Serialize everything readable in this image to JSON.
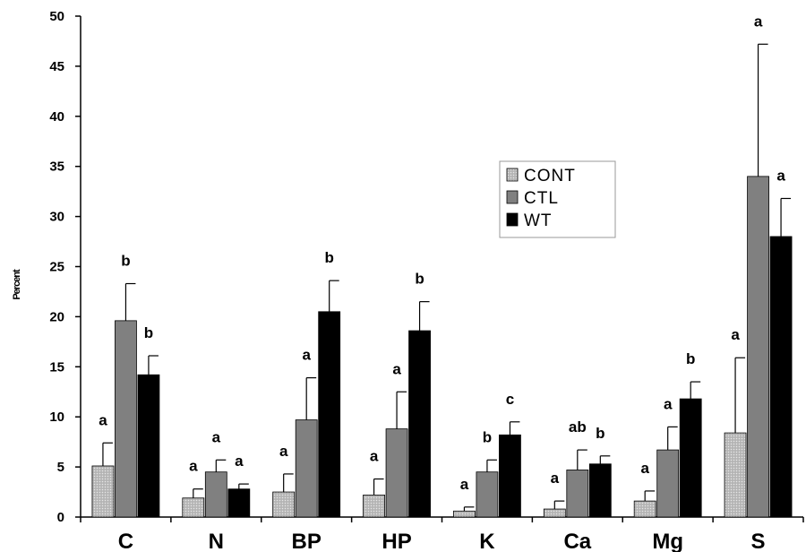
{
  "chart_data": {
    "type": "bar",
    "ylabel": "Percent",
    "xlabel": "",
    "ylim": [
      0,
      50
    ],
    "yticks": [
      0,
      5,
      10,
      15,
      20,
      25,
      30,
      35,
      40,
      45,
      50
    ],
    "grid": false,
    "legend_position": "center-right",
    "categories": [
      "C",
      "N",
      "BP",
      "HP",
      "K",
      "Ca",
      "Mg",
      "S"
    ],
    "series": [
      {
        "name": "CONT",
        "color": "#c0c0c0",
        "pattern": "dotted",
        "values": [
          5.1,
          1.9,
          2.5,
          2.2,
          0.6,
          0.8,
          1.6,
          8.4
        ],
        "errors": [
          2.3,
          0.9,
          1.8,
          1.6,
          0.4,
          0.8,
          1.0,
          7.5
        ],
        "labels": [
          "a",
          "a",
          "a",
          "a",
          "a",
          "a",
          "a",
          "a"
        ]
      },
      {
        "name": "CTL",
        "color": "#808080",
        "pattern": "solid",
        "values": [
          19.6,
          4.5,
          9.7,
          8.8,
          4.5,
          4.7,
          6.7,
          34.0
        ],
        "errors": [
          3.7,
          1.2,
          4.2,
          3.7,
          1.2,
          2.0,
          2.3,
          13.2
        ],
        "labels": [
          "b",
          "a",
          "a",
          "a",
          "b",
          "ab",
          "a",
          "a"
        ]
      },
      {
        "name": "WT",
        "color": "#000000",
        "pattern": "solid",
        "values": [
          14.2,
          2.8,
          20.5,
          18.6,
          8.2,
          5.3,
          11.8,
          28.0
        ],
        "errors": [
          1.9,
          0.5,
          3.1,
          2.9,
          1.3,
          0.8,
          1.7,
          3.8
        ],
        "labels": [
          "b",
          "a",
          "b",
          "b",
          "c",
          "b",
          "b",
          "a"
        ]
      }
    ]
  }
}
